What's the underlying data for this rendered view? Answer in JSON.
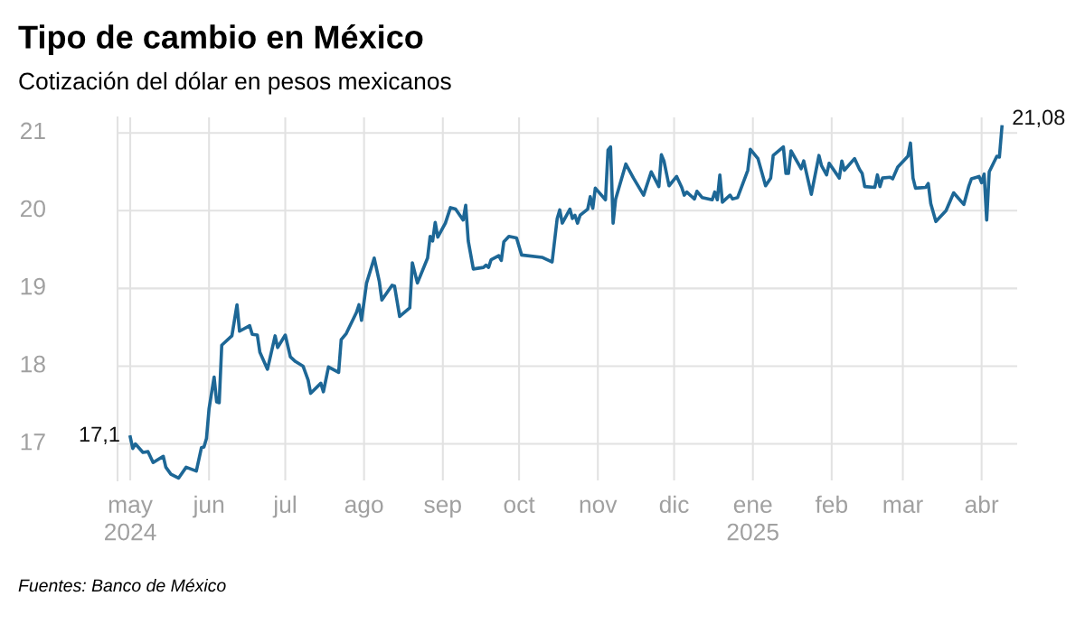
{
  "chart_data": {
    "type": "line",
    "title": "Tipo de cambio en México",
    "subtitle": "Cotización del dólar en pesos mexicanos",
    "x": [
      "2024-05-01",
      "2024-05-02",
      "2024-05-03",
      "2024-05-06",
      "2024-05-08",
      "2024-05-10",
      "2024-05-14",
      "2024-05-15",
      "2024-05-17",
      "2024-05-20",
      "2024-05-23",
      "2024-05-27",
      "2024-05-29",
      "2024-05-30",
      "2024-05-31",
      "2024-06-01",
      "2024-06-03",
      "2024-06-04",
      "2024-06-05",
      "2024-06-06",
      "2024-06-10",
      "2024-06-12",
      "2024-06-13",
      "2024-06-17",
      "2024-06-18",
      "2024-06-20",
      "2024-06-21",
      "2024-06-24",
      "2024-06-27",
      "2024-06-28",
      "2024-07-01",
      "2024-07-03",
      "2024-07-05",
      "2024-07-08",
      "2024-07-10",
      "2024-07-11",
      "2024-07-15",
      "2024-07-16",
      "2024-07-18",
      "2024-07-22",
      "2024-07-23",
      "2024-07-25",
      "2024-07-29",
      "2024-07-30",
      "2024-07-31",
      "2024-08-02",
      "2024-08-05",
      "2024-08-07",
      "2024-08-08",
      "2024-08-12",
      "2024-08-13",
      "2024-08-15",
      "2024-08-19",
      "2024-08-20",
      "2024-08-22",
      "2024-08-26",
      "2024-08-27",
      "2024-08-28",
      "2024-08-29",
      "2024-08-30",
      "2024-09-02",
      "2024-09-04",
      "2024-09-06",
      "2024-09-09",
      "2024-09-10",
      "2024-09-11",
      "2024-09-13",
      "2024-09-17",
      "2024-09-18",
      "2024-09-19",
      "2024-09-20",
      "2024-09-23",
      "2024-09-24",
      "2024-09-25",
      "2024-09-27",
      "2024-09-30",
      "2024-10-02",
      "2024-10-10",
      "2024-10-14",
      "2024-10-16",
      "2024-10-17",
      "2024-10-18",
      "2024-10-21",
      "2024-10-22",
      "2024-10-23",
      "2024-10-24",
      "2024-10-25",
      "2024-10-28",
      "2024-10-29",
      "2024-10-30",
      "2024-10-31",
      "2024-11-04",
      "2024-11-05",
      "2024-11-06",
      "2024-11-07",
      "2024-11-08",
      "2024-11-12",
      "2024-11-15",
      "2024-11-19",
      "2024-11-22",
      "2024-11-25",
      "2024-11-26",
      "2024-11-27",
      "2024-11-29",
      "2024-12-02",
      "2024-12-04",
      "2024-12-05",
      "2024-12-06",
      "2024-12-09",
      "2024-12-10",
      "2024-12-12",
      "2024-12-16",
      "2024-12-17",
      "2024-12-18",
      "2024-12-19",
      "2024-12-20",
      "2024-12-23",
      "2024-12-24",
      "2024-12-26",
      "2024-12-30",
      "2024-12-31",
      "2025-01-03",
      "2025-01-06",
      "2025-01-08",
      "2025-01-09",
      "2025-01-13",
      "2025-01-14",
      "2025-01-15",
      "2025-01-16",
      "2025-01-20",
      "2025-01-21",
      "2025-01-24",
      "2025-01-27",
      "2025-01-28",
      "2025-01-30",
      "2025-01-31",
      "2025-02-04",
      "2025-02-05",
      "2025-02-06",
      "2025-02-10",
      "2025-02-12",
      "2025-02-13",
      "2025-02-14",
      "2025-02-18",
      "2025-02-19",
      "2025-02-20",
      "2025-02-21",
      "2025-02-24",
      "2025-02-25",
      "2025-02-27",
      "2025-03-03",
      "2025-03-04",
      "2025-03-05",
      "2025-03-06",
      "2025-03-10",
      "2025-03-11",
      "2025-03-12",
      "2025-03-14",
      "2025-03-18",
      "2025-03-21",
      "2025-03-25",
      "2025-03-27",
      "2025-03-28",
      "2025-03-31",
      "2025-04-01",
      "2025-04-02",
      "2025-04-03",
      "2025-04-04",
      "2025-04-07",
      "2025-04-08",
      "2025-04-09"
    ],
    "series": [
      {
        "color": "#1d6796",
        "values": [
          17.09,
          16.94,
          17.0,
          16.89,
          16.9,
          16.76,
          16.84,
          16.7,
          16.61,
          16.56,
          16.7,
          16.65,
          16.95,
          16.96,
          17.07,
          17.45,
          17.86,
          17.54,
          17.53,
          18.27,
          18.39,
          18.79,
          18.45,
          18.52,
          18.41,
          18.4,
          18.18,
          17.96,
          18.39,
          18.24,
          18.4,
          18.12,
          18.06,
          18.0,
          17.82,
          17.65,
          17.78,
          17.67,
          17.99,
          17.92,
          18.34,
          18.42,
          18.69,
          18.79,
          18.59,
          19.07,
          19.39,
          19.09,
          18.85,
          19.04,
          19.03,
          18.64,
          18.75,
          19.33,
          19.07,
          19.39,
          19.67,
          19.61,
          19.85,
          19.66,
          19.84,
          20.04,
          20.02,
          19.88,
          20.07,
          19.61,
          19.25,
          19.27,
          19.3,
          19.27,
          19.37,
          19.42,
          19.36,
          19.6,
          19.67,
          19.65,
          19.43,
          19.4,
          19.34,
          19.9,
          20.01,
          19.84,
          20.02,
          19.9,
          19.94,
          19.84,
          19.94,
          20.02,
          20.18,
          20.03,
          20.29,
          20.14,
          20.78,
          20.82,
          19.84,
          20.15,
          20.6,
          20.42,
          20.2,
          20.5,
          20.31,
          20.72,
          20.64,
          20.32,
          20.44,
          20.3,
          20.2,
          20.24,
          20.15,
          20.25,
          20.17,
          20.14,
          20.24,
          20.14,
          20.46,
          20.11,
          20.2,
          20.15,
          20.17,
          20.52,
          20.79,
          20.67,
          20.32,
          20.42,
          20.71,
          20.82,
          20.48,
          20.48,
          20.77,
          20.54,
          20.64,
          20.21,
          20.71,
          20.58,
          20.46,
          20.61,
          20.42,
          20.64,
          20.52,
          20.67,
          20.53,
          20.48,
          20.31,
          20.3,
          20.46,
          20.31,
          20.42,
          20.43,
          20.41,
          20.56,
          20.7,
          20.87,
          20.42,
          20.29,
          20.3,
          20.35,
          20.09,
          19.86,
          20.0,
          20.23,
          20.08,
          20.32,
          20.41,
          20.44,
          20.36,
          20.47,
          19.88,
          20.5,
          20.7,
          20.69,
          21.08
        ]
      }
    ],
    "xlim": [
      "2024-04-26",
      "2025-04-15"
    ],
    "xticks": [
      {
        "value": "2024-05-01",
        "label": "may\n2024"
      },
      {
        "value": "2024-06-01",
        "label": "jun"
      },
      {
        "value": "2024-07-01",
        "label": "jul"
      },
      {
        "value": "2024-08-01",
        "label": "ago"
      },
      {
        "value": "2024-09-01",
        "label": "sep"
      },
      {
        "value": "2024-10-01",
        "label": "oct"
      },
      {
        "value": "2024-11-01",
        "label": "nov"
      },
      {
        "value": "2024-12-01",
        "label": "dic"
      },
      {
        "value": "2025-01-01",
        "label": "ene\n2025"
      },
      {
        "value": "2025-02-01",
        "label": "feb"
      },
      {
        "value": "2025-03-01",
        "label": "mar"
      },
      {
        "value": "2025-04-01",
        "label": "abr"
      }
    ],
    "ylim": [
      16.53,
      21.2
    ],
    "yticks": [
      17,
      18,
      19,
      20,
      21
    ],
    "grid": true,
    "legend": false,
    "marker": "none",
    "line_style": "solid",
    "annotations": [
      {
        "text": "17,1",
        "x": "2024-05-01",
        "y": 17.1
      },
      {
        "text": "21,08",
        "x": "2025-04-09",
        "y": 21.08
      },
      "Fuentes: Banco de México"
    ]
  }
}
